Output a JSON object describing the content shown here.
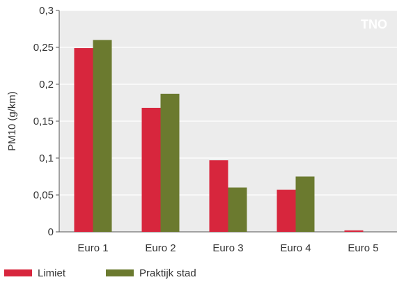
{
  "chart_data": {
    "type": "bar",
    "ylabel": "PM10 (g/km)",
    "ylim": [
      0,
      0.3
    ],
    "yticks": [
      "0",
      "0,05",
      "0,1",
      "0,15",
      "0,2",
      "0,25",
      "0,3"
    ],
    "categories": [
      "Euro 1",
      "Euro 2",
      "Euro 3",
      "Euro 4",
      "Euro 5"
    ],
    "series": [
      {
        "name": "Limiet",
        "color": "#d7263d",
        "values": [
          0.249,
          0.168,
          0.097,
          0.057,
          0.002
        ]
      },
      {
        "name": "Praktijk stad",
        "color": "#6b7a2f",
        "values": [
          0.26,
          0.187,
          0.06,
          0.075,
          0.0
        ]
      }
    ],
    "grid": true,
    "legend_position": "bottom-left",
    "plot_background": "#ececec",
    "watermark": "TNO"
  }
}
